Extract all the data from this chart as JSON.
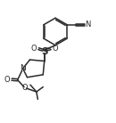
{
  "background_color": "#ffffff",
  "line_color": "#2a2a2a",
  "lw": 1.1,
  "figsize": [
    1.3,
    1.38
  ],
  "dpi": 100,
  "xlim": [
    0,
    13
  ],
  "ylim": [
    0,
    14
  ]
}
